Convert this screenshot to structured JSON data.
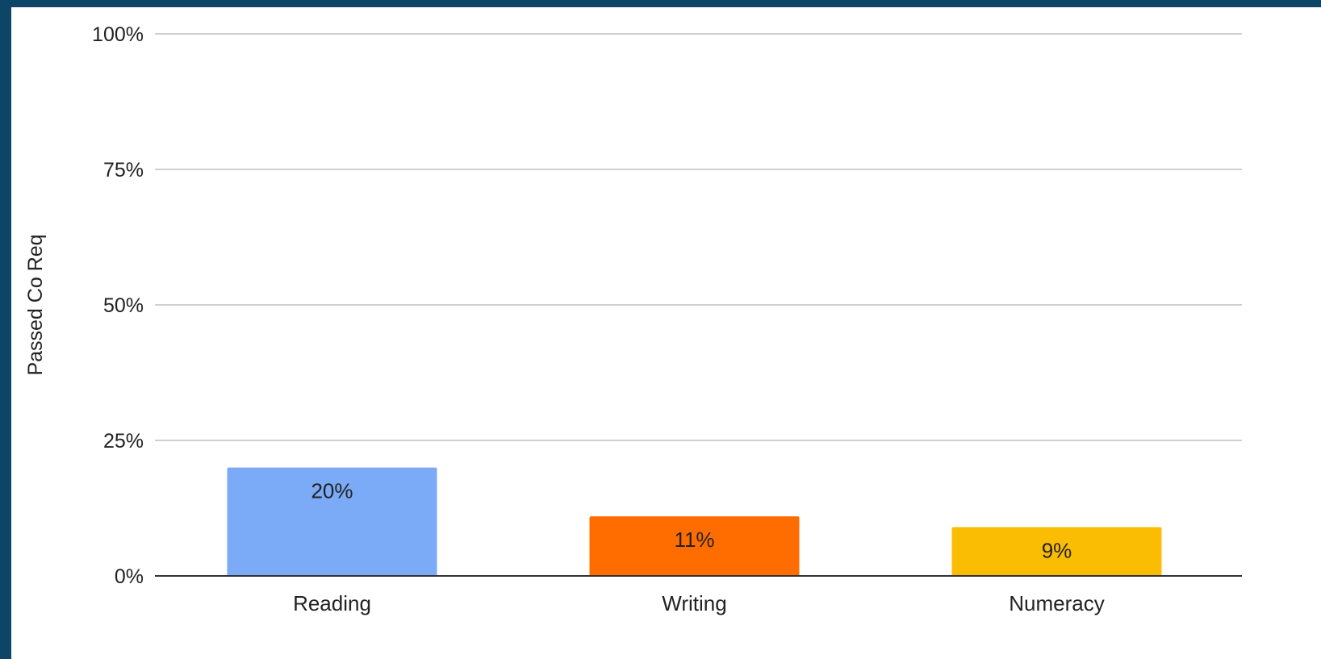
{
  "colors": {
    "frame": "#0c4566",
    "panel": "#ffffff",
    "gridline": "#d0d0d0",
    "baseline": "#333333",
    "text": "#222222"
  },
  "chart_data": {
    "type": "bar",
    "title": "",
    "xlabel": "",
    "ylabel": "Passed Co Req",
    "categories": [
      "Reading",
      "Writing",
      "Numeracy"
    ],
    "values": [
      20,
      11,
      9
    ],
    "value_labels": [
      "20%",
      "11%",
      "9%"
    ],
    "bar_colors": [
      "#7baaf7",
      "#ff6d01",
      "#fbbc04"
    ],
    "ylim": [
      0,
      100
    ],
    "yticks": [
      0,
      25,
      50,
      75,
      100
    ],
    "ytick_labels": [
      "0%",
      "25%",
      "50%",
      "75%",
      "100%"
    ],
    "grid": true,
    "legend": "none"
  }
}
